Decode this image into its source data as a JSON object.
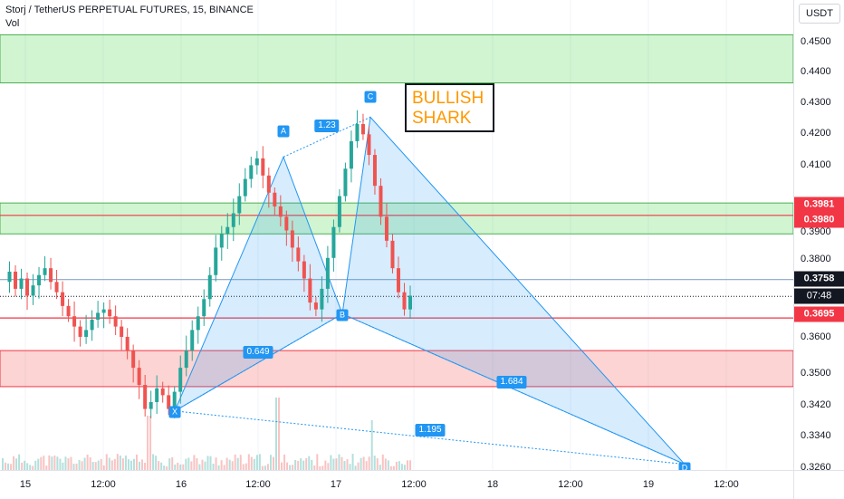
{
  "header": {
    "title": "Storj / TetherUS PERPETUAL FUTURES, 15, BINANCE",
    "volume_label": "Vol"
  },
  "currency_button": "USDT",
  "colors": {
    "bull": "#26a69a",
    "bear": "#ef5350",
    "pattern_line": "#2196f3",
    "pattern_fill": "rgba(33,150,243,0.18)",
    "green_zone": "rgba(0,200,0,0.18)",
    "red_zone": "rgba(239,83,80,0.25)",
    "pattern_text": "#ff9800"
  },
  "annotation": {
    "line1": "BULLISH",
    "line2": "SHARK"
  },
  "pattern_points": [
    {
      "name": "X",
      "time_label": "16 00:00",
      "price": 0.3424
    },
    {
      "name": "A",
      "time_label": "16 07:30",
      "price": 0.4164
    },
    {
      "name": "B",
      "time_label": "17 00:15",
      "price": 0.3707
    },
    {
      "name": "C",
      "time_label": "17 09:00",
      "price": 0.428
    },
    {
      "name": "D",
      "time_label": "19 13:45",
      "price": 0.3269
    }
  ],
  "ratios": [
    {
      "label": "1.23"
    },
    {
      "label": "0.649"
    },
    {
      "label": "1.684"
    },
    {
      "label": "1.195"
    }
  ],
  "price_badges": [
    {
      "label": "0.3981",
      "color": "#f23645"
    },
    {
      "label": "0.3980",
      "color": "#f23645"
    },
    {
      "label": "0.3758",
      "color": "#131722"
    },
    {
      "label": "07:48",
      "color": "#131722"
    },
    {
      "label": "0.3695",
      "color": "#f23645"
    }
  ],
  "chart_data": {
    "type": "candlestick",
    "title": "Storj / TetherUS PERPETUAL FUTURES, 15, BINANCE",
    "x_ticks": [
      "15",
      "12:00",
      "16",
      "12:00",
      "17",
      "12:00",
      "18",
      "12:00",
      "19",
      "12:00"
    ],
    "y_ticks": [
      "0.4500",
      "0.4400",
      "0.4300",
      "0.4200",
      "0.4100",
      "0.3900",
      "0.3800",
      "0.3600",
      "0.3500",
      "0.3420",
      "0.3340",
      "0.3260"
    ],
    "ylim": [
      0.325,
      0.457
    ],
    "green_zones": [
      [
        0.438,
        0.452
      ],
      [
        0.394,
        0.403
      ]
    ],
    "red_zone": [
      0.3495,
      0.36
    ],
    "horizontal_lines": [
      {
        "price": 0.3994,
        "color": "#f23645"
      },
      {
        "price": 0.3695,
        "color": "#f23645"
      },
      {
        "price": 0.3807,
        "color": "#8aa6c7"
      }
    ],
    "last_price": 0.3758,
    "ohlc_path": [
      0.38,
      0.383,
      0.378,
      0.381,
      0.376,
      0.379,
      0.382,
      0.384,
      0.38,
      0.377,
      0.373,
      0.37,
      0.367,
      0.364,
      0.366,
      0.369,
      0.371,
      0.372,
      0.37,
      0.367,
      0.364,
      0.36,
      0.355,
      0.35,
      0.343,
      0.345,
      0.349,
      0.347,
      0.343,
      0.348,
      0.355,
      0.36,
      0.366,
      0.37,
      0.375,
      0.382,
      0.39,
      0.394,
      0.396,
      0.4,
      0.405,
      0.41,
      0.414,
      0.416,
      0.411,
      0.406,
      0.402,
      0.399,
      0.395,
      0.39,
      0.386,
      0.381,
      0.374,
      0.372,
      0.378,
      0.387,
      0.396,
      0.405,
      0.413,
      0.421,
      0.426,
      0.423,
      0.417,
      0.408,
      0.399,
      0.392,
      0.384,
      0.377,
      0.372,
      0.376
    ]
  }
}
